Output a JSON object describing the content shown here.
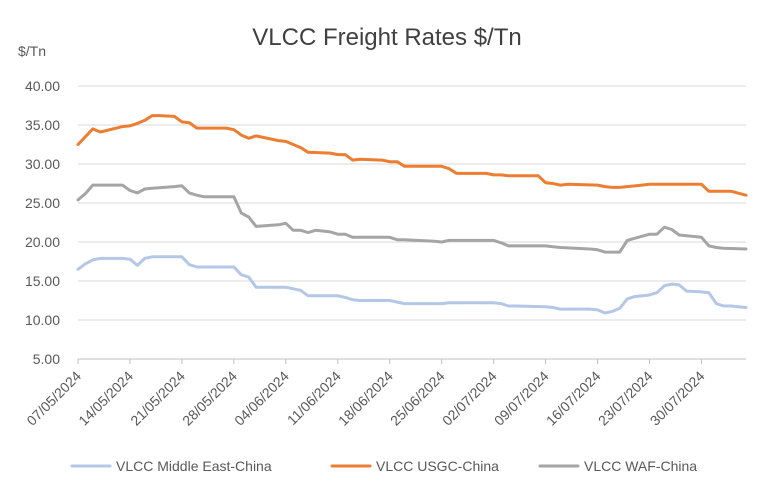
{
  "chart_data": {
    "type": "line",
    "title": "VLCC Freight Rates $/Tn",
    "unit_label": "$/Tn",
    "ylim": [
      5,
      40
    ],
    "yticks": [
      "5.00",
      "10.00",
      "15.00",
      "20.00",
      "25.00",
      "30.00",
      "35.00",
      "40.00"
    ],
    "grid": true,
    "legend_position": "bottom",
    "x_start": "2024-05-07",
    "x_end": "2024-08-05",
    "xticks": [
      "07/05/2024",
      "14/05/2024",
      "21/05/2024",
      "28/05/2024",
      "04/06/2024",
      "11/06/2024",
      "18/06/2024",
      "25/06/2024",
      "02/07/2024",
      "09/07/2024",
      "16/07/2024",
      "23/07/2024",
      "30/07/2024"
    ],
    "series": [
      {
        "name": "VLCC Middle East-China",
        "color": "#b4c7e7",
        "points": [
          [
            "2024-05-07",
            16.5
          ],
          [
            "2024-05-08",
            17.2
          ],
          [
            "2024-05-09",
            17.7
          ],
          [
            "2024-05-10",
            17.9
          ],
          [
            "2024-05-13",
            17.9
          ],
          [
            "2024-05-14",
            17.8
          ],
          [
            "2024-05-15",
            17.0
          ],
          [
            "2024-05-16",
            17.9
          ],
          [
            "2024-05-17",
            18.1
          ],
          [
            "2024-05-20",
            18.1
          ],
          [
            "2024-05-21",
            18.1
          ],
          [
            "2024-05-22",
            17.1
          ],
          [
            "2024-05-23",
            16.8
          ],
          [
            "2024-05-27",
            16.8
          ],
          [
            "2024-05-28",
            16.8
          ],
          [
            "2024-05-29",
            15.8
          ],
          [
            "2024-05-30",
            15.5
          ],
          [
            "2024-05-31",
            14.2
          ],
          [
            "2024-06-03",
            14.2
          ],
          [
            "2024-06-04",
            14.2
          ],
          [
            "2024-06-05",
            14.0
          ],
          [
            "2024-06-06",
            13.8
          ],
          [
            "2024-06-07",
            13.1
          ],
          [
            "2024-06-10",
            13.1
          ],
          [
            "2024-06-11",
            13.1
          ],
          [
            "2024-06-12",
            12.9
          ],
          [
            "2024-06-13",
            12.6
          ],
          [
            "2024-06-14",
            12.5
          ],
          [
            "2024-06-17",
            12.5
          ],
          [
            "2024-06-18",
            12.5
          ],
          [
            "2024-06-19",
            12.3
          ],
          [
            "2024-06-20",
            12.1
          ],
          [
            "2024-06-24",
            12.1
          ],
          [
            "2024-06-25",
            12.1
          ],
          [
            "2024-06-26",
            12.2
          ],
          [
            "2024-06-27",
            12.2
          ],
          [
            "2024-07-01",
            12.2
          ],
          [
            "2024-07-02",
            12.2
          ],
          [
            "2024-07-03",
            12.1
          ],
          [
            "2024-07-04",
            11.8
          ],
          [
            "2024-07-05",
            11.8
          ],
          [
            "2024-07-09",
            11.7
          ],
          [
            "2024-07-10",
            11.6
          ],
          [
            "2024-07-11",
            11.4
          ],
          [
            "2024-07-15",
            11.4
          ],
          [
            "2024-07-16",
            11.3
          ],
          [
            "2024-07-17",
            10.9
          ],
          [
            "2024-07-18",
            11.1
          ],
          [
            "2024-07-19",
            11.5
          ],
          [
            "2024-07-20",
            12.7
          ],
          [
            "2024-07-21",
            13.0
          ],
          [
            "2024-07-23",
            13.2
          ],
          [
            "2024-07-24",
            13.5
          ],
          [
            "2024-07-25",
            14.4
          ],
          [
            "2024-07-26",
            14.6
          ],
          [
            "2024-07-27",
            14.5
          ],
          [
            "2024-07-28",
            13.7
          ],
          [
            "2024-07-30",
            13.6
          ],
          [
            "2024-07-31",
            13.5
          ],
          [
            "2024-08-01",
            12.1
          ],
          [
            "2024-08-02",
            11.8
          ],
          [
            "2024-08-03",
            11.8
          ],
          [
            "2024-08-05",
            11.6
          ]
        ]
      },
      {
        "name": "VLCC USGC-China",
        "color": "#ed7d31",
        "points": [
          [
            "2024-05-07",
            32.5
          ],
          [
            "2024-05-08",
            33.5
          ],
          [
            "2024-05-09",
            34.5
          ],
          [
            "2024-05-10",
            34.1
          ],
          [
            "2024-05-13",
            34.8
          ],
          [
            "2024-05-14",
            34.9
          ],
          [
            "2024-05-15",
            35.2
          ],
          [
            "2024-05-16",
            35.6
          ],
          [
            "2024-05-17",
            36.2
          ],
          [
            "2024-05-18",
            36.2
          ],
          [
            "2024-05-20",
            36.1
          ],
          [
            "2024-05-21",
            35.4
          ],
          [
            "2024-05-22",
            35.3
          ],
          [
            "2024-05-23",
            34.6
          ],
          [
            "2024-05-27",
            34.6
          ],
          [
            "2024-05-28",
            34.4
          ],
          [
            "2024-05-29",
            33.7
          ],
          [
            "2024-05-30",
            33.3
          ],
          [
            "2024-05-31",
            33.6
          ],
          [
            "2024-06-03",
            33.0
          ],
          [
            "2024-06-04",
            32.9
          ],
          [
            "2024-06-05",
            32.5
          ],
          [
            "2024-06-06",
            32.1
          ],
          [
            "2024-06-07",
            31.5
          ],
          [
            "2024-06-10",
            31.4
          ],
          [
            "2024-06-11",
            31.2
          ],
          [
            "2024-06-12",
            31.2
          ],
          [
            "2024-06-13",
            30.5
          ],
          [
            "2024-06-14",
            30.6
          ],
          [
            "2024-06-17",
            30.5
          ],
          [
            "2024-06-18",
            30.3
          ],
          [
            "2024-06-19",
            30.3
          ],
          [
            "2024-06-20",
            29.7
          ],
          [
            "2024-06-24",
            29.7
          ],
          [
            "2024-06-25",
            29.7
          ],
          [
            "2024-06-26",
            29.4
          ],
          [
            "2024-06-27",
            28.8
          ],
          [
            "2024-07-01",
            28.8
          ],
          [
            "2024-07-02",
            28.6
          ],
          [
            "2024-07-03",
            28.6
          ],
          [
            "2024-07-04",
            28.5
          ],
          [
            "2024-07-08",
            28.5
          ],
          [
            "2024-07-09",
            27.6
          ],
          [
            "2024-07-10",
            27.5
          ],
          [
            "2024-07-11",
            27.3
          ],
          [
            "2024-07-12",
            27.4
          ],
          [
            "2024-07-16",
            27.3
          ],
          [
            "2024-07-17",
            27.1
          ],
          [
            "2024-07-18",
            27.0
          ],
          [
            "2024-07-19",
            27.0
          ],
          [
            "2024-07-22",
            27.3
          ],
          [
            "2024-07-23",
            27.4
          ],
          [
            "2024-07-30",
            27.4
          ],
          [
            "2024-07-31",
            26.5
          ],
          [
            "2024-08-01",
            26.5
          ],
          [
            "2024-08-03",
            26.5
          ],
          [
            "2024-08-05",
            26.0
          ]
        ]
      },
      {
        "name": "VLCC WAF-China",
        "color": "#a5a5a5",
        "points": [
          [
            "2024-05-07",
            25.4
          ],
          [
            "2024-05-08",
            26.2
          ],
          [
            "2024-05-09",
            27.3
          ],
          [
            "2024-05-10",
            27.3
          ],
          [
            "2024-05-13",
            27.3
          ],
          [
            "2024-05-14",
            26.6
          ],
          [
            "2024-05-15",
            26.3
          ],
          [
            "2024-05-16",
            26.8
          ],
          [
            "2024-05-17",
            26.9
          ],
          [
            "2024-05-20",
            27.1
          ],
          [
            "2024-05-21",
            27.2
          ],
          [
            "2024-05-22",
            26.3
          ],
          [
            "2024-05-23",
            26.0
          ],
          [
            "2024-05-24",
            25.8
          ],
          [
            "2024-05-27",
            25.8
          ],
          [
            "2024-05-28",
            25.8
          ],
          [
            "2024-05-29",
            23.7
          ],
          [
            "2024-05-30",
            23.2
          ],
          [
            "2024-05-31",
            22.0
          ],
          [
            "2024-06-03",
            22.2
          ],
          [
            "2024-06-04",
            22.4
          ],
          [
            "2024-06-05",
            21.5
          ],
          [
            "2024-06-06",
            21.5
          ],
          [
            "2024-06-07",
            21.2
          ],
          [
            "2024-06-08",
            21.5
          ],
          [
            "2024-06-10",
            21.3
          ],
          [
            "2024-06-11",
            21.0
          ],
          [
            "2024-06-12",
            21.0
          ],
          [
            "2024-06-13",
            20.6
          ],
          [
            "2024-06-14",
            20.6
          ],
          [
            "2024-06-17",
            20.6
          ],
          [
            "2024-06-18",
            20.6
          ],
          [
            "2024-06-19",
            20.3
          ],
          [
            "2024-06-20",
            20.3
          ],
          [
            "2024-06-24",
            20.1
          ],
          [
            "2024-06-25",
            20.0
          ],
          [
            "2024-06-26",
            20.2
          ],
          [
            "2024-07-01",
            20.2
          ],
          [
            "2024-07-02",
            20.2
          ],
          [
            "2024-07-03",
            19.9
          ],
          [
            "2024-07-04",
            19.5
          ],
          [
            "2024-07-08",
            19.5
          ],
          [
            "2024-07-09",
            19.5
          ],
          [
            "2024-07-10",
            19.4
          ],
          [
            "2024-07-11",
            19.3
          ],
          [
            "2024-07-15",
            19.1
          ],
          [
            "2024-07-16",
            19.0
          ],
          [
            "2024-07-17",
            18.7
          ],
          [
            "2024-07-19",
            18.7
          ],
          [
            "2024-07-20",
            20.2
          ],
          [
            "2024-07-23",
            21.0
          ],
          [
            "2024-07-24",
            21.0
          ],
          [
            "2024-07-25",
            21.9
          ],
          [
            "2024-07-26",
            21.6
          ],
          [
            "2024-07-27",
            20.9
          ],
          [
            "2024-07-30",
            20.6
          ],
          [
            "2024-07-31",
            19.5
          ],
          [
            "2024-08-01",
            19.3
          ],
          [
            "2024-08-02",
            19.2
          ],
          [
            "2024-08-05",
            19.1
          ]
        ]
      }
    ]
  }
}
